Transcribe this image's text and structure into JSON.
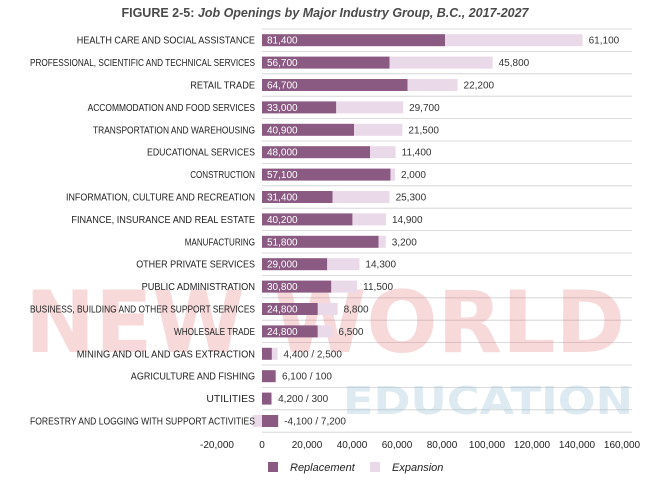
{
  "title_prefix": "FIGURE 2-5: ",
  "title_italic": "Job Openings by Major Industry Group, B.C., 2017-2027",
  "colors": {
    "replacement": "#8a5a82",
    "expansion": "#ead9e8",
    "grid": "#cfcfcf",
    "inside_label": "#ffffff",
    "outside_label": "#333333"
  },
  "chart_data": {
    "type": "bar",
    "orientation": "horizontal",
    "stacked": true,
    "categories": [
      "HEALTH CARE AND SOCIAL ASSISTANCE",
      "PROFESSIONAL, SCIENTIFIC AND TECHNICAL SERVICES",
      "RETAIL TRADE",
      "ACCOMMODATION AND FOOD SERVICES",
      "TRANSPORTATION AND WAREHOUSING",
      "EDUCATIONAL SERVICES",
      "CONSTRUCTION",
      "INFORMATION, CULTURE AND RECREATION",
      "FINANCE, INSURANCE AND REAL ESTATE",
      "MANUFACTURING",
      "OTHER PRIVATE SERVICES",
      "PUBLIC ADMINISTRATION",
      "BUSINESS, BUILDING AND OTHER SUPPORT SERVICES",
      "WHOLESALE TRADE",
      "MINING AND OIL AND GAS EXTRACTION",
      "AGRICULTURE AND FISHING",
      "UTILITIES",
      "FORESTRY AND LOGGING WITH SUPPORT ACTIVITIES"
    ],
    "series": [
      {
        "name": "Replacement",
        "values": [
          81400,
          56700,
          64700,
          33000,
          40900,
          48000,
          57100,
          31400,
          40200,
          51800,
          29000,
          30800,
          24800,
          24800,
          4400,
          6100,
          4200,
          7200
        ]
      },
      {
        "name": "Expansion",
        "values": [
          61100,
          45800,
          22200,
          29700,
          21500,
          11400,
          2000,
          25300,
          14900,
          3200,
          14300,
          11500,
          8800,
          6500,
          2500,
          100,
          300,
          -4100
        ]
      }
    ],
    "replacement_labels": [
      "81,400",
      "56,700",
      "64,700",
      "33,000",
      "40,900",
      "48,000",
      "57,100",
      "31,400",
      "40,200",
      "51,800",
      "29,000",
      "30,800",
      "24,800",
      "24,800",
      "",
      "",
      "",
      ""
    ],
    "expansion_labels": [
      "61,100",
      "45,800",
      "22,200",
      "29,700",
      "21,500",
      "11,400",
      "2,000",
      "25,300",
      "14,900",
      "3,200",
      "14,300",
      "11,500",
      "8,800",
      "6,500",
      "4,400 / 2,500",
      "6,100 / 100",
      "4,200 / 300",
      "-4,100 / 7,200"
    ],
    "xlim": [
      -20000,
      160000
    ],
    "xticks": [
      "-20,000",
      "0",
      "20,000",
      "40,000",
      "60,000",
      "80,000",
      "100,000",
      "120,000",
      "140,000",
      "160,000"
    ],
    "legend": {
      "position": "bottom",
      "items": [
        "Replacement",
        "Expansion"
      ]
    }
  },
  "watermark": {
    "line1": "NEW WORLD",
    "line2": "EDUCATION"
  }
}
